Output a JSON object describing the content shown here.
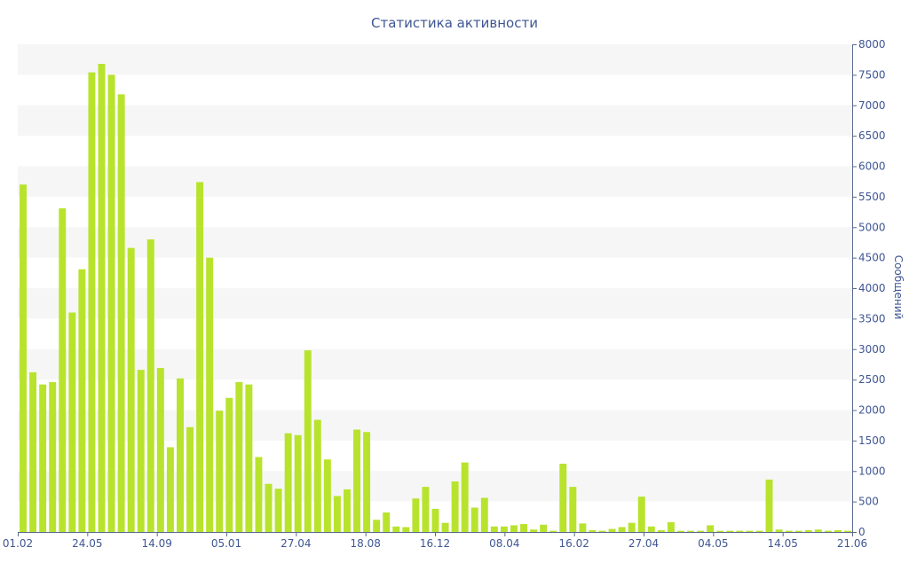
{
  "colors": {
    "bar": "#b8e32d",
    "band": "#f6f6f6",
    "axis": "#5a6b8c",
    "text": "#3f5693"
  },
  "chart_data": {
    "type": "bar",
    "title": "Статистика активности",
    "ylabel": "Сообщений",
    "xlabel": "",
    "ylim": [
      0,
      8000
    ],
    "yticks": [
      0,
      500,
      1000,
      1500,
      2000,
      2500,
      3000,
      3500,
      4000,
      4500,
      5000,
      5500,
      6000,
      6500,
      7000,
      7500,
      8000
    ],
    "xtick_labels": [
      "01.02",
      "24.05",
      "14.09",
      "05.01",
      "27.04",
      "18.08",
      "16.12",
      "08.04",
      "16.02",
      "27.04",
      "04.05",
      "14.05",
      "21.06"
    ],
    "y_axis_position": "right",
    "grid": "alternating horizontal bands",
    "series": [
      {
        "values": [
          5700,
          2620,
          2420,
          2460,
          5310,
          3600,
          4310,
          7540,
          7680,
          7500,
          7180,
          4660,
          2660,
          4800,
          2690,
          1390,
          2520,
          1720,
          5740,
          4500,
          1990,
          2200,
          2460,
          2420,
          1230,
          790,
          710,
          1620,
          1590,
          2980,
          1840,
          1190,
          590,
          700,
          1680,
          1640,
          200,
          320,
          90,
          80,
          550,
          740,
          380,
          150,
          830,
          1140,
          400,
          560,
          90,
          90,
          110,
          130,
          40,
          120,
          20,
          1120,
          740,
          140,
          30,
          20,
          50,
          80,
          150,
          580,
          90,
          30,
          160,
          20,
          20,
          20,
          110,
          20,
          20,
          20,
          20,
          20,
          860,
          40,
          20,
          20,
          30,
          40,
          20,
          30,
          20
        ]
      }
    ]
  }
}
